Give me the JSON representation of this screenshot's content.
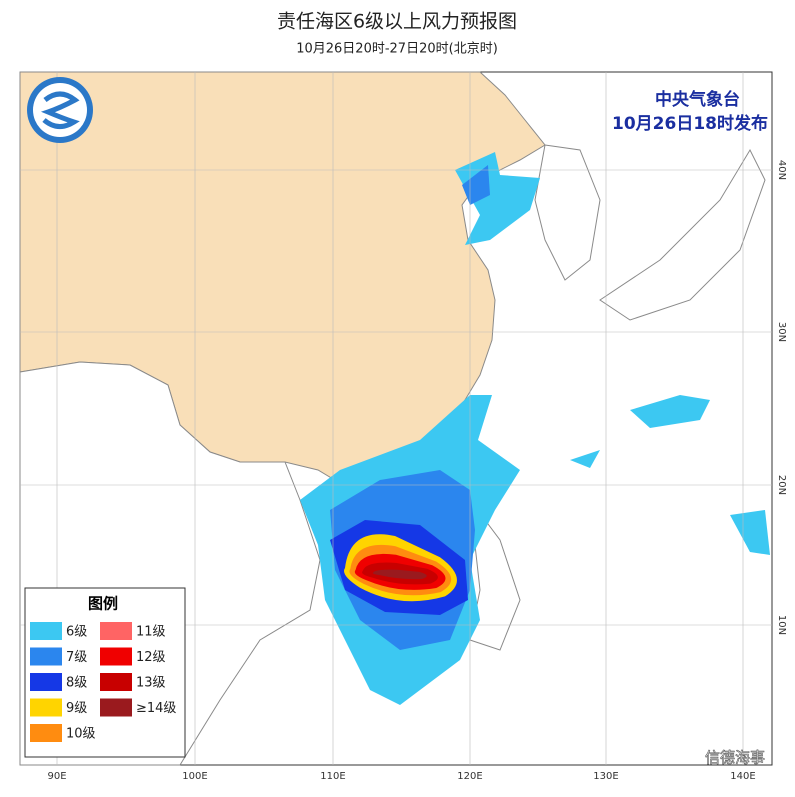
{
  "header": {
    "title": "责任海区6级以上风力预报图",
    "subtitle": "10月26日20时-27日20时(北京时)"
  },
  "issuer": {
    "agency": "中央气象台",
    "issued": "10月26日18时发布"
  },
  "legend": {
    "title": "图例",
    "items": [
      {
        "label": "6级",
        "color": "#3cc8f2"
      },
      {
        "label": "7级",
        "color": "#2b86ee"
      },
      {
        "label": "8级",
        "color": "#1538e6"
      },
      {
        "label": "9级",
        "color": "#ffd400"
      },
      {
        "label": "10级",
        "color": "#ff8c10"
      },
      {
        "label": "11级",
        "color": "#ff6464"
      },
      {
        "label": "12级",
        "color": "#f00000"
      },
      {
        "label": "13级",
        "color": "#c80000"
      },
      {
        "label": "≥14级",
        "color": "#9a1a1e"
      }
    ]
  },
  "axes": {
    "longitudes": [
      "90E",
      "100E",
      "110E",
      "120E",
      "130E",
      "140E"
    ],
    "latitudes": [
      "40N",
      "30N",
      "20N",
      "10N"
    ]
  },
  "watermark": "信德海事"
}
